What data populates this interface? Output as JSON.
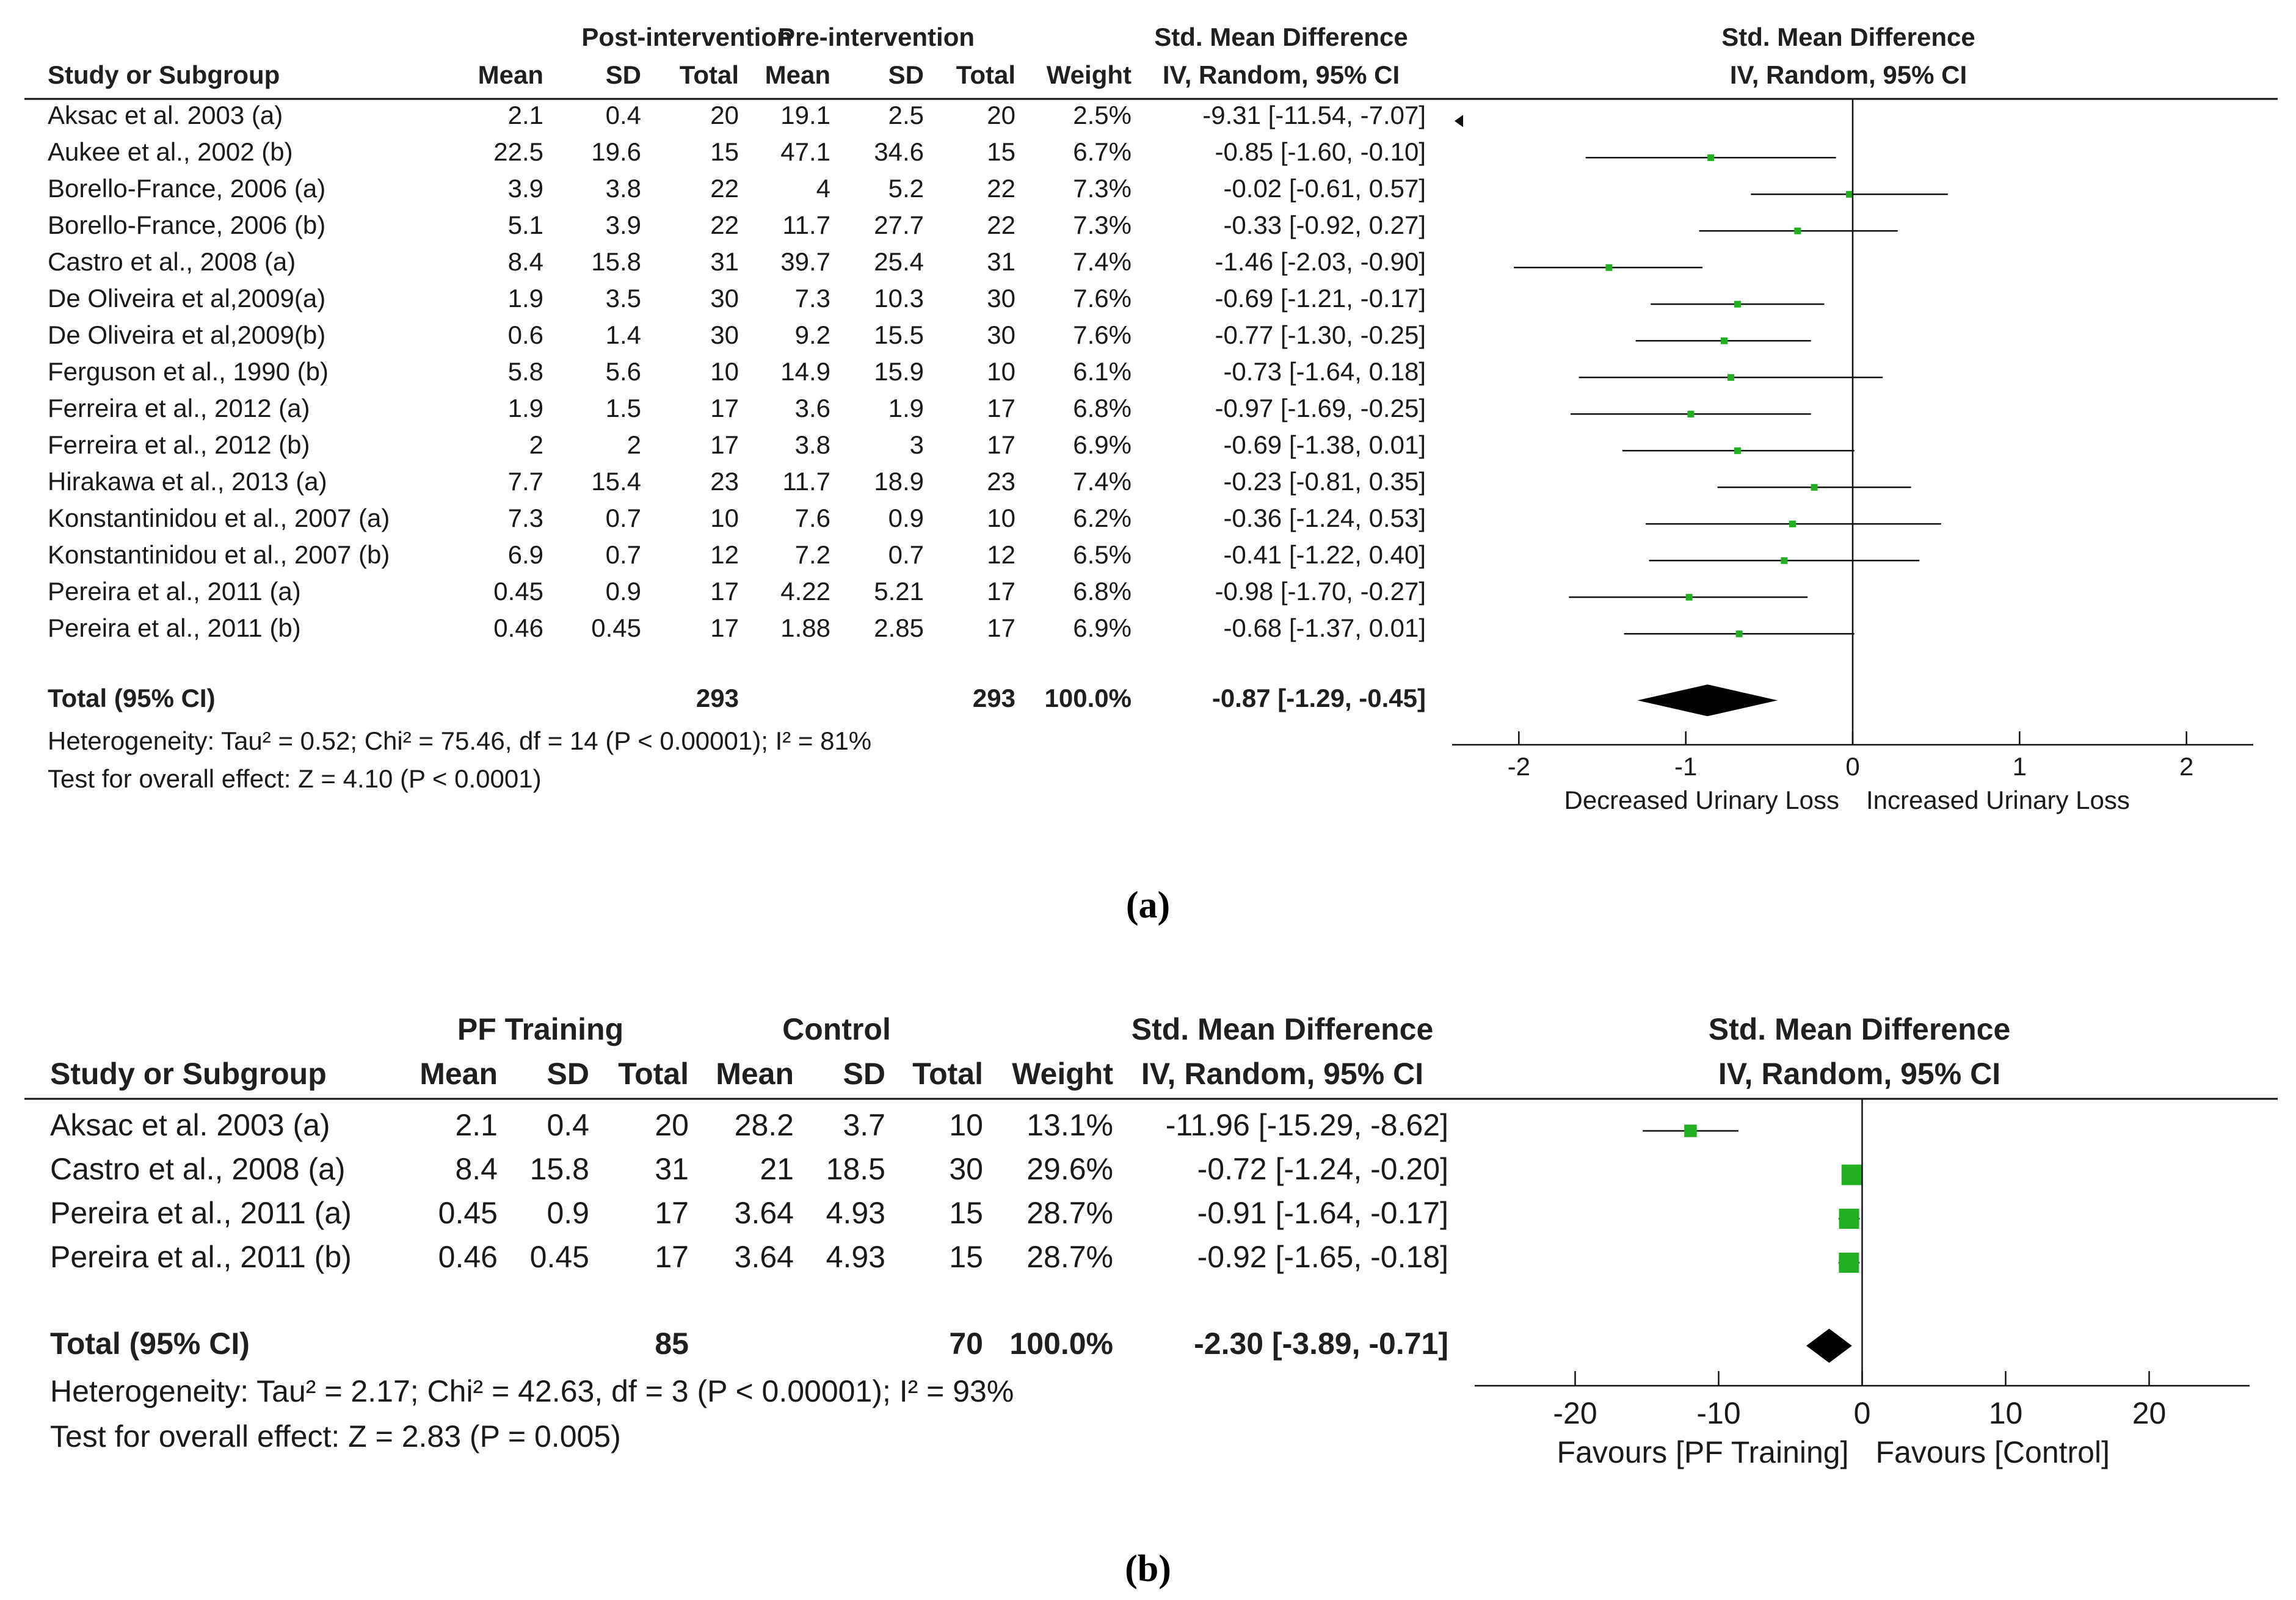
{
  "chart_data": [
    {
      "type": "forest",
      "caption": "(a)",
      "group_headers": [
        "Post-intervention",
        "Pre-intervention"
      ],
      "column_headers": [
        "Study or Subgroup",
        "Mean",
        "SD",
        "Total",
        "Mean",
        "SD",
        "Total",
        "Weight"
      ],
      "effect_header": [
        "Std. Mean Difference",
        "IV, Random, 95% CI"
      ],
      "plot_header": [
        "Std. Mean Difference",
        "IV, Random, 95% CI"
      ],
      "rows": [
        {
          "study": "Aksac et al. 2003 (a)",
          "post_mean": "2.1",
          "post_sd": "0.4",
          "post_total": "20",
          "pre_mean": "19.1",
          "pre_sd": "2.5",
          "pre_total": "20",
          "weight": "2.5%",
          "ci_text": "-9.31 [-11.54, -7.07]",
          "est": -9.31,
          "lo": -11.54,
          "hi": -7.07
        },
        {
          "study": "Aukee et al., 2002 (b)",
          "post_mean": "22.5",
          "post_sd": "19.6",
          "post_total": "15",
          "pre_mean": "47.1",
          "pre_sd": "34.6",
          "pre_total": "15",
          "weight": "6.7%",
          "ci_text": "-0.85 [-1.60, -0.10]",
          "est": -0.85,
          "lo": -1.6,
          "hi": -0.1
        },
        {
          "study": "Borello-France, 2006 (a)",
          "post_mean": "3.9",
          "post_sd": "3.8",
          "post_total": "22",
          "pre_mean": "4",
          "pre_sd": "5.2",
          "pre_total": "22",
          "weight": "7.3%",
          "ci_text": "-0.02 [-0.61, 0.57]",
          "est": -0.02,
          "lo": -0.61,
          "hi": 0.57
        },
        {
          "study": "Borello-France, 2006 (b)",
          "post_mean": "5.1",
          "post_sd": "3.9",
          "post_total": "22",
          "pre_mean": "11.7",
          "pre_sd": "27.7",
          "pre_total": "22",
          "weight": "7.3%",
          "ci_text": "-0.33 [-0.92, 0.27]",
          "est": -0.33,
          "lo": -0.92,
          "hi": 0.27
        },
        {
          "study": "Castro et al., 2008 (a)",
          "post_mean": "8.4",
          "post_sd": "15.8",
          "post_total": "31",
          "pre_mean": "39.7",
          "pre_sd": "25.4",
          "pre_total": "31",
          "weight": "7.4%",
          "ci_text": "-1.46 [-2.03, -0.90]",
          "est": -1.46,
          "lo": -2.03,
          "hi": -0.9
        },
        {
          "study": "De Oliveira et al,2009(a)",
          "post_mean": "1.9",
          "post_sd": "3.5",
          "post_total": "30",
          "pre_mean": "7.3",
          "pre_sd": "10.3",
          "pre_total": "30",
          "weight": "7.6%",
          "ci_text": "-0.69 [-1.21, -0.17]",
          "est": -0.69,
          "lo": -1.21,
          "hi": -0.17
        },
        {
          "study": "De Oliveira et al,2009(b)",
          "post_mean": "0.6",
          "post_sd": "1.4",
          "post_total": "30",
          "pre_mean": "9.2",
          "pre_sd": "15.5",
          "pre_total": "30",
          "weight": "7.6%",
          "ci_text": "-0.77 [-1.30, -0.25]",
          "est": -0.77,
          "lo": -1.3,
          "hi": -0.25
        },
        {
          "study": "Ferguson et al., 1990 (b)",
          "post_mean": "5.8",
          "post_sd": "5.6",
          "post_total": "10",
          "pre_mean": "14.9",
          "pre_sd": "15.9",
          "pre_total": "10",
          "weight": "6.1%",
          "ci_text": "-0.73 [-1.64, 0.18]",
          "est": -0.73,
          "lo": -1.64,
          "hi": 0.18
        },
        {
          "study": "Ferreira et al., 2012 (a)",
          "post_mean": "1.9",
          "post_sd": "1.5",
          "post_total": "17",
          "pre_mean": "3.6",
          "pre_sd": "1.9",
          "pre_total": "17",
          "weight": "6.8%",
          "ci_text": "-0.97 [-1.69, -0.25]",
          "est": -0.97,
          "lo": -1.69,
          "hi": -0.25
        },
        {
          "study": "Ferreira et al., 2012 (b)",
          "post_mean": "2",
          "post_sd": "2",
          "post_total": "17",
          "pre_mean": "3.8",
          "pre_sd": "3",
          "pre_total": "17",
          "weight": "6.9%",
          "ci_text": "-0.69 [-1.38, 0.01]",
          "est": -0.69,
          "lo": -1.38,
          "hi": 0.01
        },
        {
          "study": "Hirakawa et al., 2013 (a)",
          "post_mean": "7.7",
          "post_sd": "15.4",
          "post_total": "23",
          "pre_mean": "11.7",
          "pre_sd": "18.9",
          "pre_total": "23",
          "weight": "7.4%",
          "ci_text": "-0.23 [-0.81, 0.35]",
          "est": -0.23,
          "lo": -0.81,
          "hi": 0.35
        },
        {
          "study": "Konstantinidou et al., 2007 (a)",
          "post_mean": "7.3",
          "post_sd": "0.7",
          "post_total": "10",
          "pre_mean": "7.6",
          "pre_sd": "0.9",
          "pre_total": "10",
          "weight": "6.2%",
          "ci_text": "-0.36 [-1.24, 0.53]",
          "est": -0.36,
          "lo": -1.24,
          "hi": 0.53
        },
        {
          "study": "Konstantinidou et al., 2007 (b)",
          "post_mean": "6.9",
          "post_sd": "0.7",
          "post_total": "12",
          "pre_mean": "7.2",
          "pre_sd": "0.7",
          "pre_total": "12",
          "weight": "6.5%",
          "ci_text": "-0.41 [-1.22, 0.40]",
          "est": -0.41,
          "lo": -1.22,
          "hi": 0.4
        },
        {
          "study": "Pereira et al., 2011 (a)",
          "post_mean": "0.45",
          "post_sd": "0.9",
          "post_total": "17",
          "pre_mean": "4.22",
          "pre_sd": "5.21",
          "pre_total": "17",
          "weight": "6.8%",
          "ci_text": "-0.98 [-1.70, -0.27]",
          "est": -0.98,
          "lo": -1.7,
          "hi": -0.27
        },
        {
          "study": "Pereira et al., 2011 (b)",
          "post_mean": "0.46",
          "post_sd": "0.45",
          "post_total": "17",
          "pre_mean": "1.88",
          "pre_sd": "2.85",
          "pre_total": "17",
          "weight": "6.9%",
          "ci_text": "-0.68 [-1.37, 0.01]",
          "est": -0.68,
          "lo": -1.37,
          "hi": 0.01
        }
      ],
      "total": {
        "label": "Total (95% CI)",
        "post_total": "293",
        "pre_total": "293",
        "weight": "100.0%",
        "ci_text": "-0.87 [-1.29, -0.45]",
        "est": -0.87,
        "lo": -1.29,
        "hi": -0.45
      },
      "heterogeneity": "Heterogeneity: Tau² = 0.52; Chi² = 75.46, df = 14 (P < 0.00001); I² = 81%",
      "overall_effect": "Test for overall effect: Z = 4.10 (P < 0.0001)",
      "axis": {
        "xlim": [
          -2.4,
          2.4
        ],
        "ticks": [
          -2,
          -1,
          0,
          1,
          2
        ],
        "tick_labels": [
          "-2",
          "-1",
          "0",
          "1",
          "2"
        ]
      },
      "xlabel_left": "Decreased Urinary Loss",
      "xlabel_right": "Increased Urinary Loss"
    },
    {
      "type": "forest",
      "caption": "(b)",
      "group_headers": [
        "PF Training",
        "Control"
      ],
      "column_headers": [
        "Study or Subgroup",
        "Mean",
        "SD",
        "Total",
        "Mean",
        "SD",
        "Total",
        "Weight"
      ],
      "effect_header": [
        "Std. Mean Difference",
        "IV, Random, 95% CI"
      ],
      "plot_header": [
        "Std. Mean Difference",
        "IV, Random, 95% CI"
      ],
      "rows": [
        {
          "study": "Aksac et al. 2003 (a)",
          "post_mean": "2.1",
          "post_sd": "0.4",
          "post_total": "20",
          "pre_mean": "28.2",
          "pre_sd": "3.7",
          "pre_total": "10",
          "weight": "13.1%",
          "ci_text": "-11.96 [-15.29, -8.62]",
          "est": -11.96,
          "lo": -15.29,
          "hi": -8.62
        },
        {
          "study": "Castro et al., 2008 (a)",
          "post_mean": "8.4",
          "post_sd": "15.8",
          "post_total": "31",
          "pre_mean": "21",
          "pre_sd": "18.5",
          "pre_total": "30",
          "weight": "29.6%",
          "ci_text": "-0.72 [-1.24, -0.20]",
          "est": -0.72,
          "lo": -1.24,
          "hi": -0.2
        },
        {
          "study": "Pereira et al., 2011 (a)",
          "post_mean": "0.45",
          "post_sd": "0.9",
          "post_total": "17",
          "pre_mean": "3.64",
          "pre_sd": "4.93",
          "pre_total": "15",
          "weight": "28.7%",
          "ci_text": "-0.91 [-1.64, -0.17]",
          "est": -0.91,
          "lo": -1.64,
          "hi": -0.17
        },
        {
          "study": "Pereira et al., 2011 (b)",
          "post_mean": "0.46",
          "post_sd": "0.45",
          "post_total": "17",
          "pre_mean": "3.64",
          "pre_sd": "4.93",
          "pre_total": "15",
          "weight": "28.7%",
          "ci_text": "-0.92 [-1.65, -0.18]",
          "est": -0.92,
          "lo": -1.65,
          "hi": -0.18
        }
      ],
      "total": {
        "label": "Total (95% CI)",
        "post_total": "85",
        "pre_total": "70",
        "weight": "100.0%",
        "ci_text": "-2.30 [-3.89, -0.71]",
        "est": -2.3,
        "lo": -3.89,
        "hi": -0.71
      },
      "heterogeneity": "Heterogeneity: Tau² = 2.17; Chi² = 42.63, df = 3 (P < 0.00001); I² = 93%",
      "overall_effect": "Test for overall effect: Z = 2.83 (P = 0.005)",
      "axis": {
        "xlim": [
          -27,
          27
        ],
        "ticks": [
          -20,
          -10,
          0,
          10,
          20
        ],
        "tick_labels": [
          "-20",
          "-10",
          "0",
          "10",
          "20"
        ]
      },
      "xlabel_left": "Favours [PF Training]",
      "xlabel_right": "Favours [Control]"
    }
  ],
  "colors": {
    "marker": "#22b022",
    "text": "#1a1a1a",
    "line": "#111111"
  }
}
